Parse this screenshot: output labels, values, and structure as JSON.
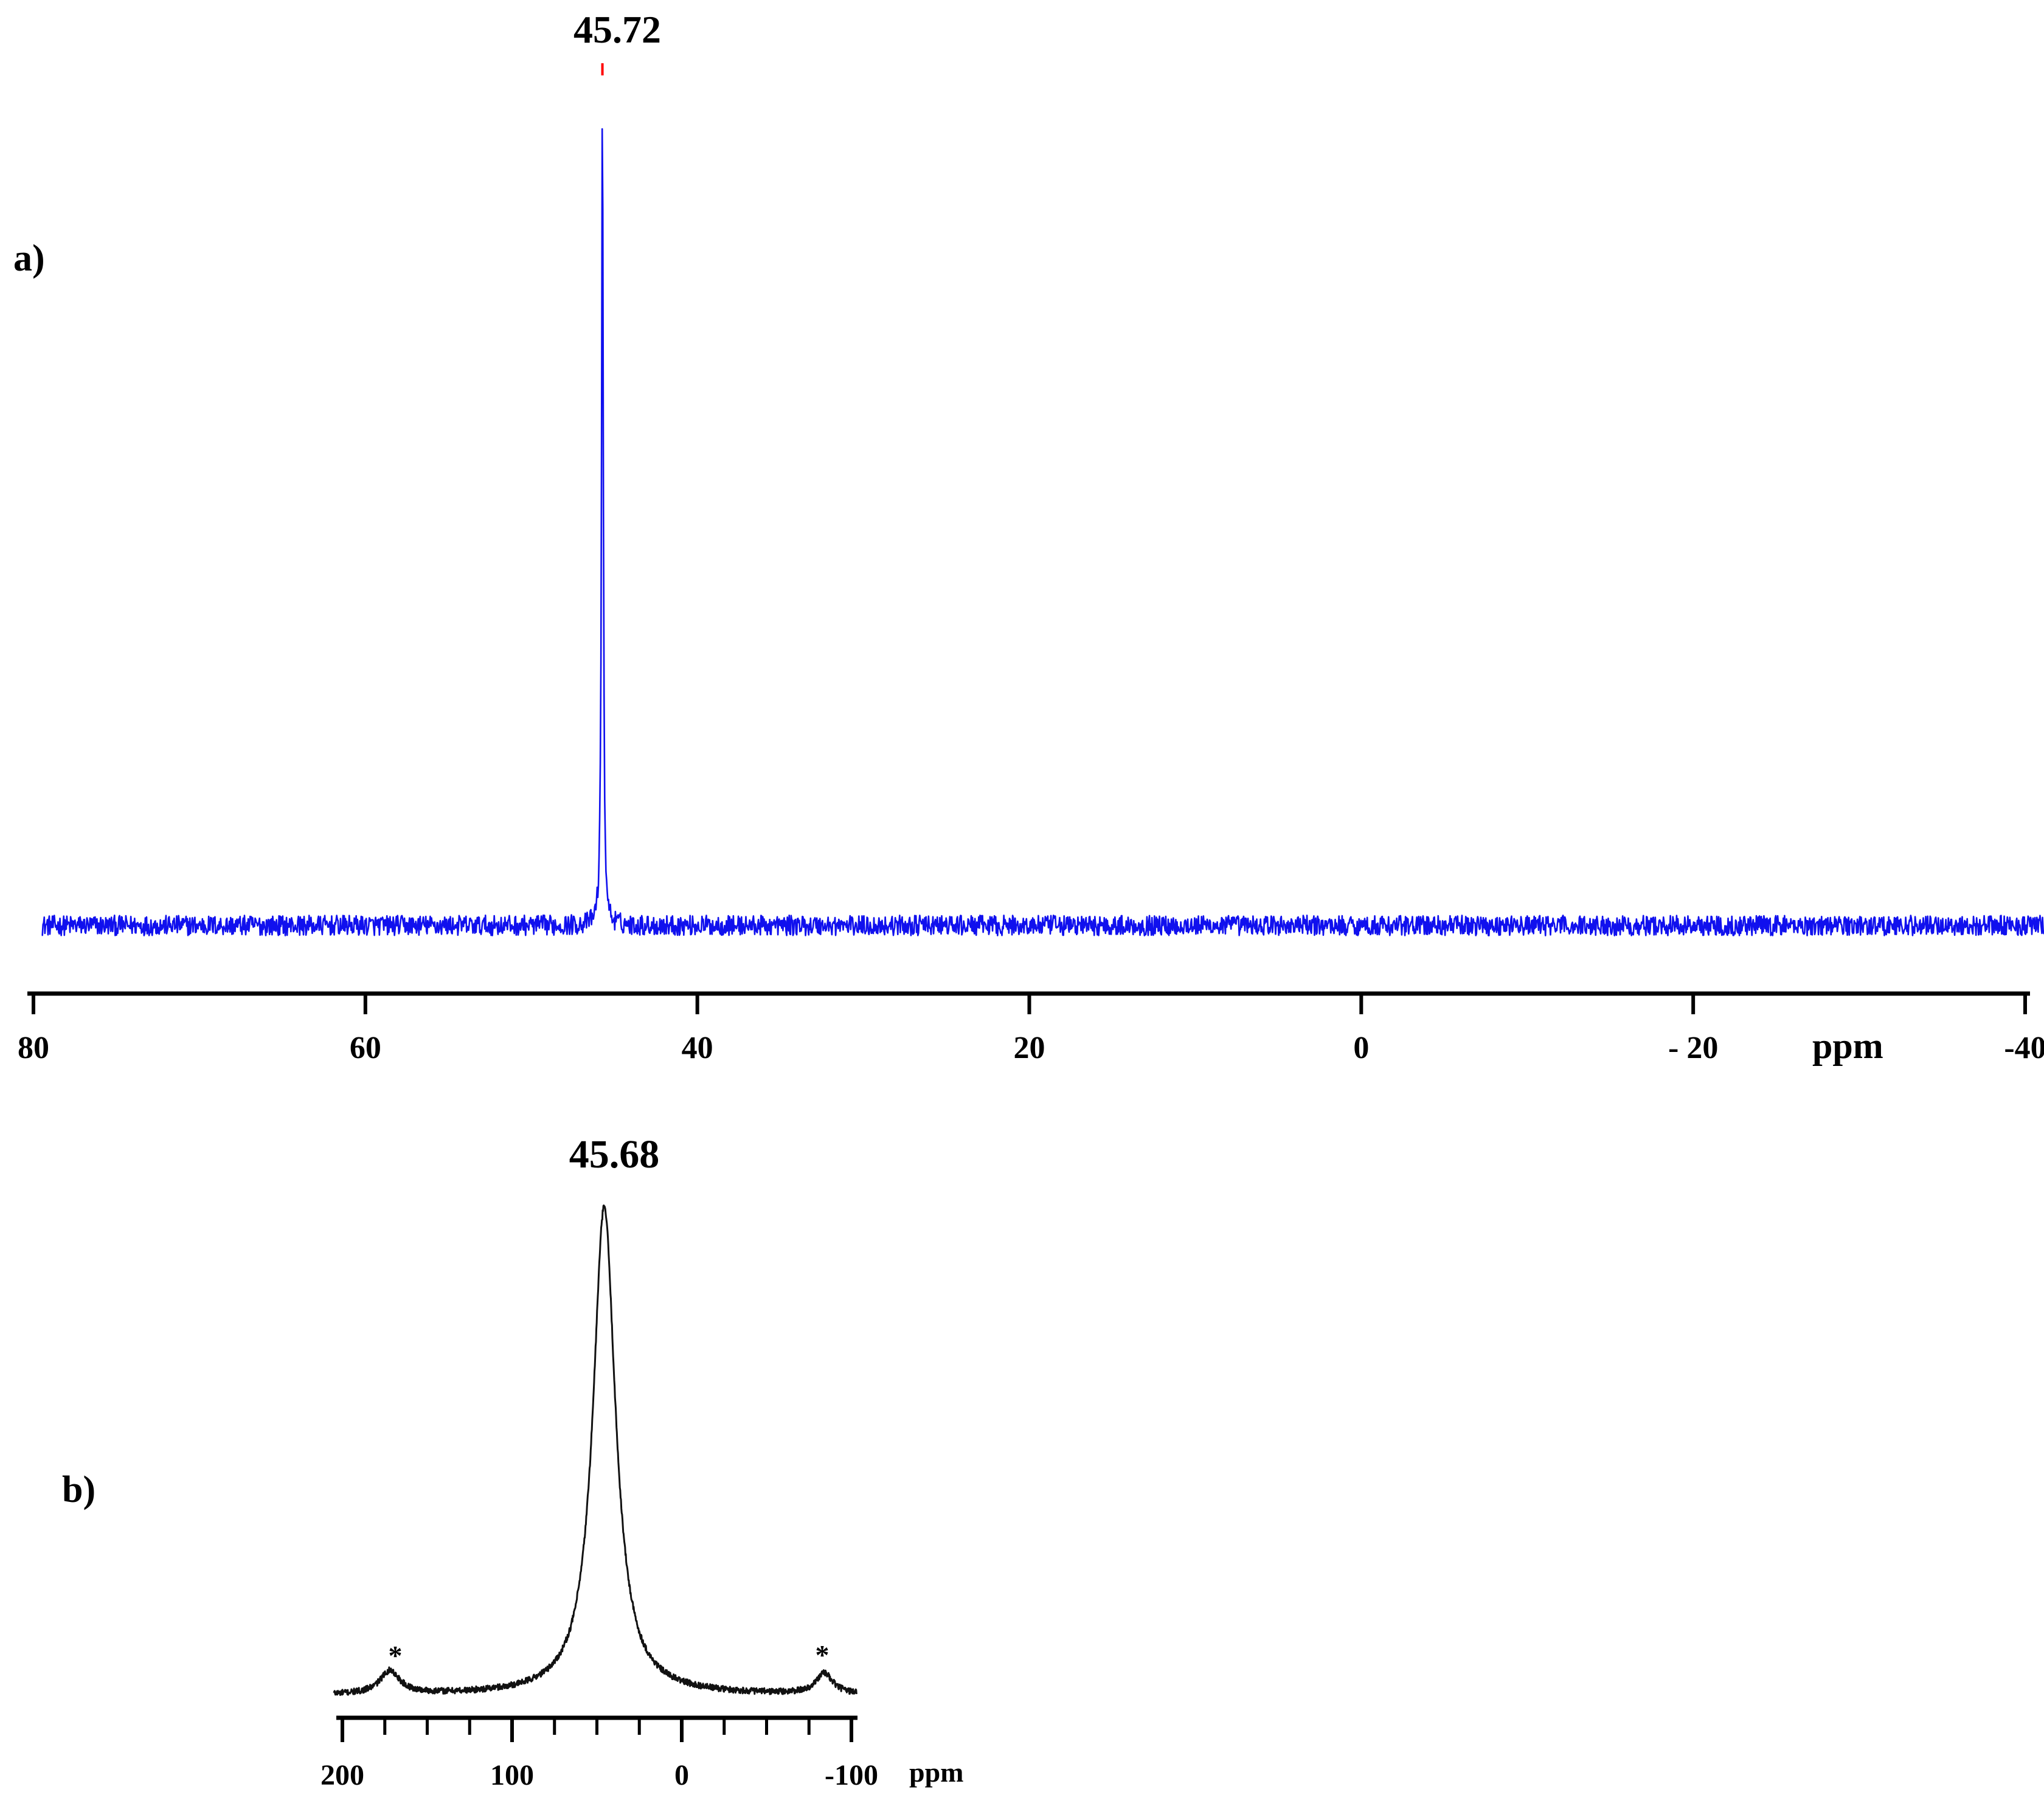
{
  "figure": {
    "panel_a_label": "a)",
    "panel_b_label": "b)"
  },
  "chart_data": [
    {
      "panel": "a)",
      "type": "line",
      "series_color": "#1010ee",
      "xlim": [
        80,
        -40
      ],
      "ylim": [
        0,
        1
      ],
      "x_ticks": [
        80,
        60,
        40,
        20,
        0,
        -20,
        -40
      ],
      "x_tick_labels": [
        "80",
        "60",
        "40",
        "20",
        "0",
        "- 20",
        "-40"
      ],
      "x_unit": "ppm",
      "peak_label": "45.72",
      "peak_marker_color": "#ff0000",
      "peaks": [
        {
          "position": 45.72,
          "height": 1.0,
          "width": 0.12
        }
      ],
      "spectrum_range": [
        79.5,
        -41.5
      ],
      "baseline": 0.0,
      "noise_amplitude": 0.012
    },
    {
      "panel": "b)",
      "type": "line",
      "series_color": "#111111",
      "xlim": [
        205,
        -105
      ],
      "ylim": [
        0,
        1
      ],
      "x_ticks": [
        200,
        100,
        0,
        -100
      ],
      "x_tick_labels": [
        "200",
        "100",
        "0",
        "-100"
      ],
      "x_minor_ticks": [
        175,
        150,
        125,
        75,
        50,
        25,
        -25,
        -50,
        -75
      ],
      "x_unit": "ppm",
      "peak_label": "45.68",
      "spinning_sideband_label": "*",
      "peaks": [
        {
          "position": 45.68,
          "height": 0.95,
          "width": 16
        },
        {
          "position": 172,
          "height": 0.045,
          "width": 14
        },
        {
          "position": -84,
          "height": 0.04,
          "width": 12
        }
      ],
      "spinning_sidebands_ppm": [
        172,
        -84
      ],
      "spectrum_range": [
        205,
        -103
      ],
      "baseline": 0.0,
      "noise_amplitude": 0.006
    }
  ]
}
